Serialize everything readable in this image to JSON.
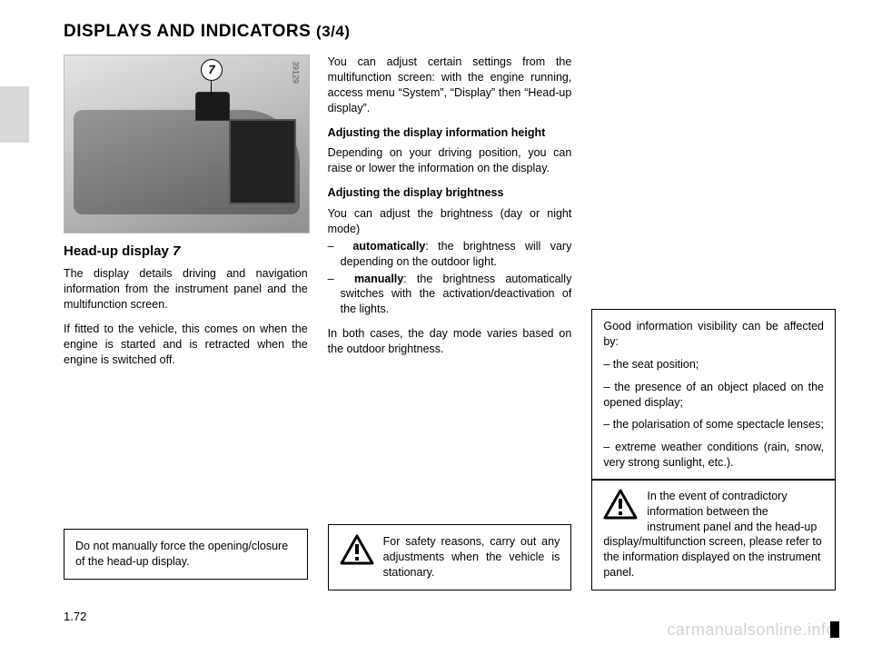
{
  "title_main": "DISPLAYS AND INDICATORS",
  "title_part": "(3/4)",
  "page_number": "1.72",
  "watermark": "carmanualsonline.info",
  "image_ref": "39129",
  "callout_number": "7",
  "col1": {
    "heading": "Head-up display",
    "heading_num": "7",
    "p1": "The display details driving and navigation information from the instrument panel and the multifunction screen.",
    "p2": "If fitted to the vehicle, this comes on when the engine is started and is retracted when the engine is switched off.",
    "box": "Do not manually force the opening/closure of the head-up display."
  },
  "col2": {
    "p1": "You can adjust certain settings from the multifunction screen: with the engine running, access menu “System”, “Display” then “Head-up display”.",
    "h_height": "Adjusting the display information height",
    "p2": "Depending on your driving position, you can raise or lower the information on the display.",
    "h_bright": "Adjusting the display brightness",
    "p3": "You can adjust the brightness (day or night mode)",
    "li1": "–  automatically: the brightness will vary depending on the outdoor light.",
    "li2": "–  manually: the brightness automatically switches with the activation/deactivation of the lights.",
    "p4": "In both cases, the day mode varies based on the outdoor brightness.",
    "warn": "For safety reasons, carry out any adjustments when the vehicle is stationary."
  },
  "col3": {
    "box_intro": "Good information visibility can be affected by:",
    "b1": "– the seat position;",
    "b2": "– the presence of an object placed on the opened display;",
    "b3": "– the polarisation of some spectacle lenses;",
    "b4": "– extreme weather conditions (rain, snow, very strong sunlight, etc.).",
    "warn": "In the event of contradictory information between the instrument panel and the head-up display/multifunction screen, please refer to the information displayed on the instrument panel."
  }
}
